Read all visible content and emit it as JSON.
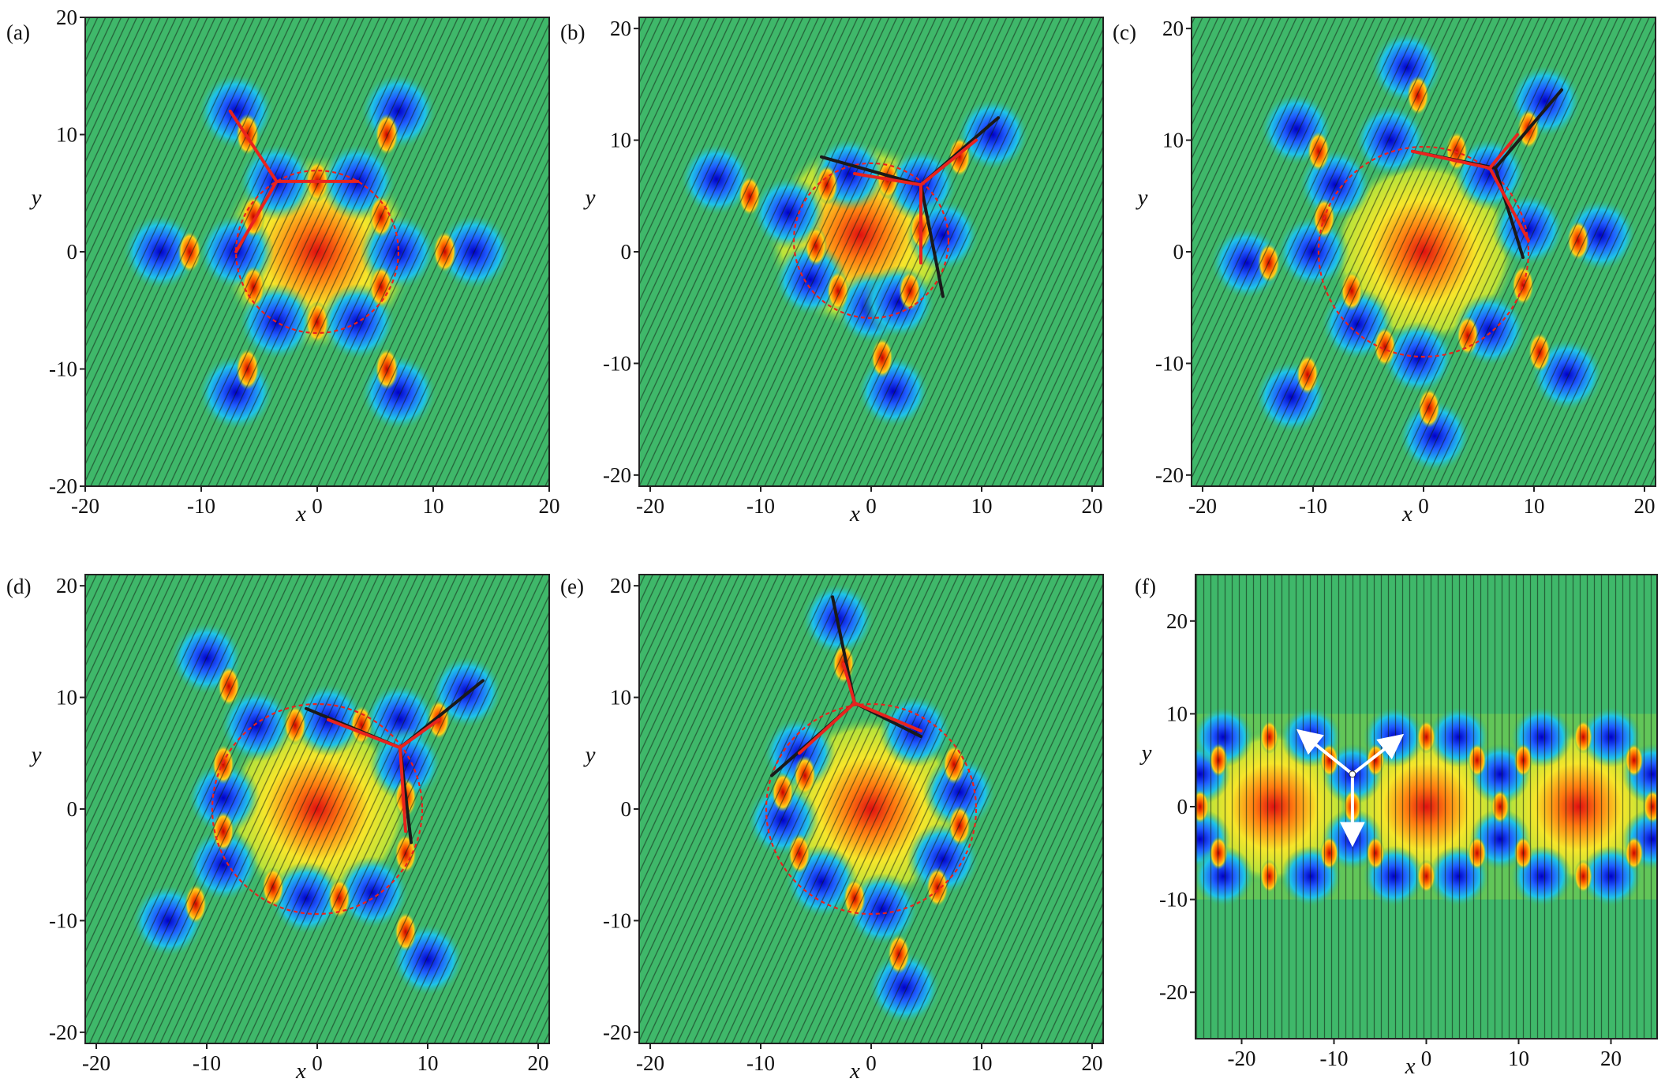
{
  "chart_data": [
    {
      "type": "heatmap",
      "panel_label": "(a)",
      "xlabel": "x",
      "ylabel": "y",
      "xlim": [
        -20,
        20
      ],
      "ylim": [
        -20,
        20
      ],
      "xticks": [
        -20,
        -10,
        0,
        10,
        20
      ],
      "yticks": [
        -20,
        -10,
        0,
        10,
        20
      ],
      "ring": {
        "cx": 0,
        "cy": 0,
        "r": 7
      },
      "hot_centers": [
        [
          0,
          0
        ]
      ],
      "dips": [
        [
          -7,
          12
        ],
        [
          7,
          12
        ],
        [
          -13.5,
          0
        ],
        [
          13.5,
          0
        ],
        [
          -7,
          -12
        ],
        [
          7,
          -12
        ],
        [
          -3.5,
          6
        ],
        [
          3.5,
          6
        ],
        [
          -7,
          0
        ],
        [
          7,
          0
        ],
        [
          -3.5,
          -6
        ],
        [
          3.5,
          -6
        ]
      ],
      "bridges": [
        [
          -6,
          10
        ],
        [
          6,
          10
        ],
        [
          -11,
          0
        ],
        [
          11,
          0
        ],
        [
          -6,
          -10
        ],
        [
          6,
          -10
        ],
        [
          0,
          6
        ],
        [
          0,
          -6
        ],
        [
          -5.5,
          3
        ],
        [
          5.5,
          3
        ],
        [
          -5.5,
          -3
        ],
        [
          5.5,
          -3
        ]
      ],
      "black_lines": [],
      "red_lines": [
        [
          [
            -7.5,
            12
          ],
          [
            -3.5,
            6
          ]
        ],
        [
          [
            -3.5,
            6
          ],
          [
            3.5,
            6
          ]
        ],
        [
          [
            -3.5,
            6
          ],
          [
            -7,
            0
          ]
        ]
      ],
      "white_arrows": []
    },
    {
      "type": "heatmap",
      "panel_label": "(b)",
      "xlabel": "x",
      "ylabel": "y",
      "xlim": [
        -21,
        21
      ],
      "ylim": [
        -21,
        21
      ],
      "xticks": [
        -20,
        -10,
        0,
        10,
        20
      ],
      "yticks": [
        -20,
        -10,
        0,
        10,
        20
      ],
      "ring": {
        "cx": 0,
        "cy": 1,
        "r": 7
      },
      "hot_centers": [
        [
          -1,
          1.5
        ]
      ],
      "dips": [
        [
          -14,
          6.5
        ],
        [
          11,
          10.5
        ],
        [
          2,
          -12.5
        ],
        [
          -7.5,
          3.5
        ],
        [
          -2,
          7
        ],
        [
          4.5,
          6
        ],
        [
          6.5,
          1.5
        ],
        [
          -5.5,
          -2.5
        ],
        [
          0,
          -5
        ],
        [
          2.5,
          -4.5
        ]
      ],
      "bridges": [
        [
          -11,
          5
        ],
        [
          8,
          8.5
        ],
        [
          1,
          -9.5
        ],
        [
          4.5,
          2
        ],
        [
          -5,
          0.5
        ],
        [
          -3,
          -3.5
        ],
        [
          3.5,
          -3.5
        ],
        [
          1.5,
          6.5
        ],
        [
          -4,
          6
        ]
      ],
      "black_lines": [
        [
          [
            -4.5,
            8.5
          ],
          [
            4.5,
            6
          ]
        ],
        [
          [
            4.5,
            6
          ],
          [
            11.5,
            12
          ]
        ],
        [
          [
            4.5,
            6
          ],
          [
            6.5,
            -4
          ]
        ]
      ],
      "red_lines": [
        [
          [
            4.5,
            6
          ],
          [
            9.5,
            10
          ]
        ],
        [
          [
            4.5,
            6
          ],
          [
            4.5,
            -1
          ]
        ],
        [
          [
            4.5,
            6
          ],
          [
            -1.5,
            7
          ]
        ]
      ],
      "white_arrows": []
    },
    {
      "type": "heatmap",
      "panel_label": "(c)",
      "xlabel": "x",
      "ylabel": "y",
      "xlim": [
        -21,
        21
      ],
      "ylim": [
        -21,
        21
      ],
      "xticks": [
        -20,
        -10,
        0,
        10,
        20
      ],
      "yticks": [
        -20,
        -10,
        0,
        10,
        20
      ],
      "ring": {
        "cx": 0,
        "cy": 0,
        "r": 9.5
      },
      "hot_centers": [
        [
          0,
          0
        ]
      ],
      "dips": [
        [
          -1.5,
          16.5
        ],
        [
          1,
          -16.5
        ],
        [
          -11.5,
          11
        ],
        [
          11,
          13.5
        ],
        [
          -12,
          -13
        ],
        [
          13,
          -11
        ],
        [
          -16,
          -1
        ],
        [
          16,
          1.5
        ],
        [
          -8,
          6
        ],
        [
          -3,
          10
        ],
        [
          6,
          7
        ],
        [
          9.5,
          2
        ],
        [
          -10,
          0
        ],
        [
          -6,
          -6.5
        ],
        [
          -0.5,
          -9.5
        ],
        [
          6,
          -7
        ]
      ],
      "bridges": [
        [
          -0.5,
          14
        ],
        [
          0.5,
          -14
        ],
        [
          -9.5,
          9
        ],
        [
          9.5,
          11
        ],
        [
          -10.5,
          -11
        ],
        [
          10.5,
          -9
        ],
        [
          -14,
          -1
        ],
        [
          14,
          1
        ],
        [
          -9,
          3
        ],
        [
          9,
          -3
        ],
        [
          -6.5,
          -3.5
        ],
        [
          3,
          9
        ],
        [
          -3.5,
          -8.5
        ],
        [
          4,
          -7.5
        ]
      ],
      "black_lines": [
        [
          [
            -1,
            9
          ],
          [
            6.5,
            7.5
          ]
        ],
        [
          [
            6.5,
            7.5
          ],
          [
            12.5,
            14.5
          ]
        ],
        [
          [
            6.5,
            7.5
          ],
          [
            9,
            -0.5
          ]
        ]
      ],
      "red_lines": [
        [
          [
            -1,
            9
          ],
          [
            6,
            7.5
          ]
        ],
        [
          [
            6,
            7.5
          ],
          [
            9.5,
            1
          ]
        ],
        [
          [
            6,
            7.5
          ],
          [
            8.5,
            10.5
          ]
        ]
      ],
      "white_arrows": []
    },
    {
      "type": "heatmap",
      "panel_label": "(d)",
      "xlabel": "x",
      "ylabel": "y",
      "xlim": [
        -21,
        21
      ],
      "ylim": [
        -21,
        21
      ],
      "xticks": [
        -20,
        -10,
        0,
        10,
        20
      ],
      "yticks": [
        -20,
        -10,
        0,
        10,
        20
      ],
      "ring": {
        "cx": 0,
        "cy": 0,
        "r": 9.5
      },
      "hot_centers": [
        [
          0,
          0
        ]
      ],
      "dips": [
        [
          -10,
          13.5
        ],
        [
          13.5,
          10.5
        ],
        [
          -13.5,
          -10
        ],
        [
          10,
          -13.5
        ],
        [
          -5.5,
          7.5
        ],
        [
          1,
          8
        ],
        [
          7.5,
          8
        ],
        [
          -8.5,
          1
        ],
        [
          -8.5,
          -5
        ],
        [
          -1,
          -8
        ],
        [
          5,
          -7.5
        ],
        [
          8,
          4
        ]
      ],
      "bridges": [
        [
          -8,
          11
        ],
        [
          11,
          8
        ],
        [
          -11,
          -8.5
        ],
        [
          8,
          -11
        ],
        [
          -2,
          7.5
        ],
        [
          4,
          7.5
        ],
        [
          -8.5,
          4
        ],
        [
          -8.5,
          -2
        ],
        [
          -4,
          -7
        ],
        [
          2,
          -8
        ],
        [
          8,
          -4
        ],
        [
          8,
          1
        ]
      ],
      "black_lines": [
        [
          [
            -1,
            9
          ],
          [
            7.5,
            5.5
          ]
        ],
        [
          [
            7.5,
            5.5
          ],
          [
            15,
            11.5
          ]
        ],
        [
          [
            7.5,
            5.5
          ],
          [
            8.5,
            -3
          ]
        ]
      ],
      "red_lines": [
        [
          [
            1,
            8
          ],
          [
            7.5,
            5.5
          ]
        ],
        [
          [
            7.5,
            5.5
          ],
          [
            8,
            -2
          ]
        ],
        [
          [
            7.5,
            5.5
          ],
          [
            11,
            8
          ]
        ]
      ],
      "white_arrows": []
    },
    {
      "type": "heatmap",
      "panel_label": "(e)",
      "xlabel": "x",
      "ylabel": "y",
      "xlim": [
        -21,
        21
      ],
      "ylim": [
        -21,
        21
      ],
      "xticks": [
        -20,
        -10,
        0,
        10,
        20
      ],
      "yticks": [
        -20,
        -10,
        0,
        10,
        20
      ],
      "ring": {
        "cx": 0,
        "cy": 0,
        "r": 9.5
      },
      "hot_centers": [
        [
          0,
          0
        ]
      ],
      "dips": [
        [
          -3,
          17
        ],
        [
          3,
          -16
        ],
        [
          -6.5,
          5
        ],
        [
          4,
          7
        ],
        [
          8,
          1.5
        ],
        [
          -8,
          -1
        ],
        [
          6.5,
          -4.5
        ],
        [
          -4.5,
          -6.5
        ],
        [
          1,
          -9
        ]
      ],
      "bridges": [
        [
          -2.5,
          13
        ],
        [
          2.5,
          -13
        ],
        [
          -8,
          1.5
        ],
        [
          7.5,
          4
        ],
        [
          6,
          -7
        ],
        [
          -1.5,
          -8
        ],
        [
          -6.5,
          -4
        ],
        [
          8,
          -1.5
        ],
        [
          -6,
          3
        ]
      ],
      "black_lines": [
        [
          [
            -3.5,
            19
          ],
          [
            -1.5,
            9.5
          ]
        ],
        [
          [
            -1.5,
            9.5
          ],
          [
            -9,
            3
          ]
        ],
        [
          [
            -1.5,
            9.5
          ],
          [
            4.5,
            6.5
          ]
        ]
      ],
      "red_lines": [
        [
          [
            -1.5,
            9.5
          ],
          [
            4.5,
            7
          ]
        ],
        [
          [
            -1.5,
            9.5
          ],
          [
            -6.5,
            5
          ]
        ],
        [
          [
            -1.5,
            9.5
          ],
          [
            -2.5,
            13
          ]
        ]
      ],
      "white_arrows": []
    },
    {
      "type": "heatmap",
      "panel_label": "(f)",
      "xlabel": "x",
      "ylabel": "y",
      "xlim": [
        -25,
        25
      ],
      "ylim": [
        -25,
        25
      ],
      "xticks": [
        -20,
        -10,
        0,
        10,
        20
      ],
      "yticks": [
        -20,
        -10,
        0,
        10,
        20
      ],
      "band": [
        -10,
        10
      ],
      "ring": null,
      "hot_centers": [
        [
          -16.5,
          0
        ],
        [
          0,
          0
        ],
        [
          16.5,
          0
        ]
      ],
      "dips": [
        [
          -24.5,
          3.5
        ],
        [
          -24.5,
          -3.5
        ],
        [
          -22,
          7.5
        ],
        [
          -22,
          -7.5
        ],
        [
          -12.5,
          7.5
        ],
        [
          -12.5,
          -7.5
        ],
        [
          -8,
          3.5
        ],
        [
          -8,
          -3.5
        ],
        [
          -3.5,
          7.5
        ],
        [
          -3.5,
          -7.5
        ],
        [
          3.5,
          7.5
        ],
        [
          3.5,
          -7.5
        ],
        [
          8,
          3.5
        ],
        [
          8,
          -3.5
        ],
        [
          12.5,
          7.5
        ],
        [
          12.5,
          -7.5
        ],
        [
          20,
          7.5
        ],
        [
          20,
          -7.5
        ],
        [
          24.5,
          3.5
        ],
        [
          24.5,
          -3.5
        ]
      ],
      "bridges": [
        [
          -17,
          7.5
        ],
        [
          -17,
          -7.5
        ],
        [
          0,
          7.5
        ],
        [
          0,
          -7.5
        ],
        [
          17,
          7.5
        ],
        [
          17,
          -7.5
        ],
        [
          -24.5,
          0
        ],
        [
          -8,
          0
        ],
        [
          8,
          0
        ],
        [
          24.5,
          0
        ],
        [
          -22.5,
          5
        ],
        [
          -22.5,
          -5
        ],
        [
          -10.5,
          5
        ],
        [
          -10.5,
          -5
        ],
        [
          -5.5,
          5
        ],
        [
          -5.5,
          -5
        ],
        [
          5.5,
          5
        ],
        [
          5.5,
          -5
        ],
        [
          10.5,
          5
        ],
        [
          10.5,
          -5
        ],
        [
          22.5,
          5
        ],
        [
          22.5,
          -5
        ]
      ],
      "black_lines": [],
      "red_lines": [],
      "white_arrows": [
        [
          [
            -8,
            3.5
          ],
          [
            -13,
            7.5
          ]
        ],
        [
          [
            -8,
            3.5
          ],
          [
            -3.5,
            7
          ]
        ],
        [
          [
            -8,
            3.5
          ],
          [
            -8,
            -3
          ]
        ]
      ]
    }
  ]
}
